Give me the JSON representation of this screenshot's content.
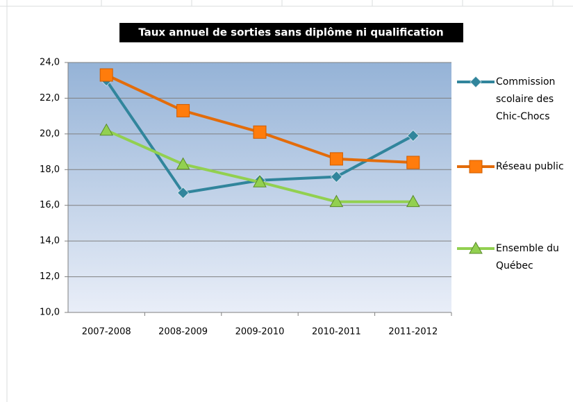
{
  "chart_data": {
    "type": "line",
    "title": "Taux annuel de sorties sans diplôme ni qualification",
    "categories": [
      "2007-2008",
      "2008-2009",
      "2009-2010",
      "2010-2011",
      "2011-2012"
    ],
    "series": [
      {
        "name": "Commission scolaire des Chic-Chocs",
        "color": "#31859c",
        "marker": "diamond",
        "values": [
          23.0,
          16.7,
          17.4,
          17.6,
          19.9
        ]
      },
      {
        "name": "Réseau public",
        "color": "#e36c0a",
        "marker": "square",
        "values": [
          23.3,
          21.3,
          20.1,
          18.6,
          18.4
        ]
      },
      {
        "name": "Ensemble du Québec",
        "color": "#92d050",
        "marker": "triangle",
        "values": [
          20.2,
          18.3,
          17.3,
          16.2,
          16.2
        ]
      }
    ],
    "ylim": [
      10,
      24
    ],
    "yticks": [
      {
        "value": 10,
        "label": "10,0"
      },
      {
        "value": 12,
        "label": "12,0"
      },
      {
        "value": 14,
        "label": "14,0"
      },
      {
        "value": 16,
        "label": "16,0"
      },
      {
        "value": 18,
        "label": "18,0"
      },
      {
        "value": 20,
        "label": "20,0"
      },
      {
        "value": 22,
        "label": "22,0"
      },
      {
        "value": 24,
        "label": "24,0"
      }
    ],
    "grid": true,
    "legend": "right"
  }
}
